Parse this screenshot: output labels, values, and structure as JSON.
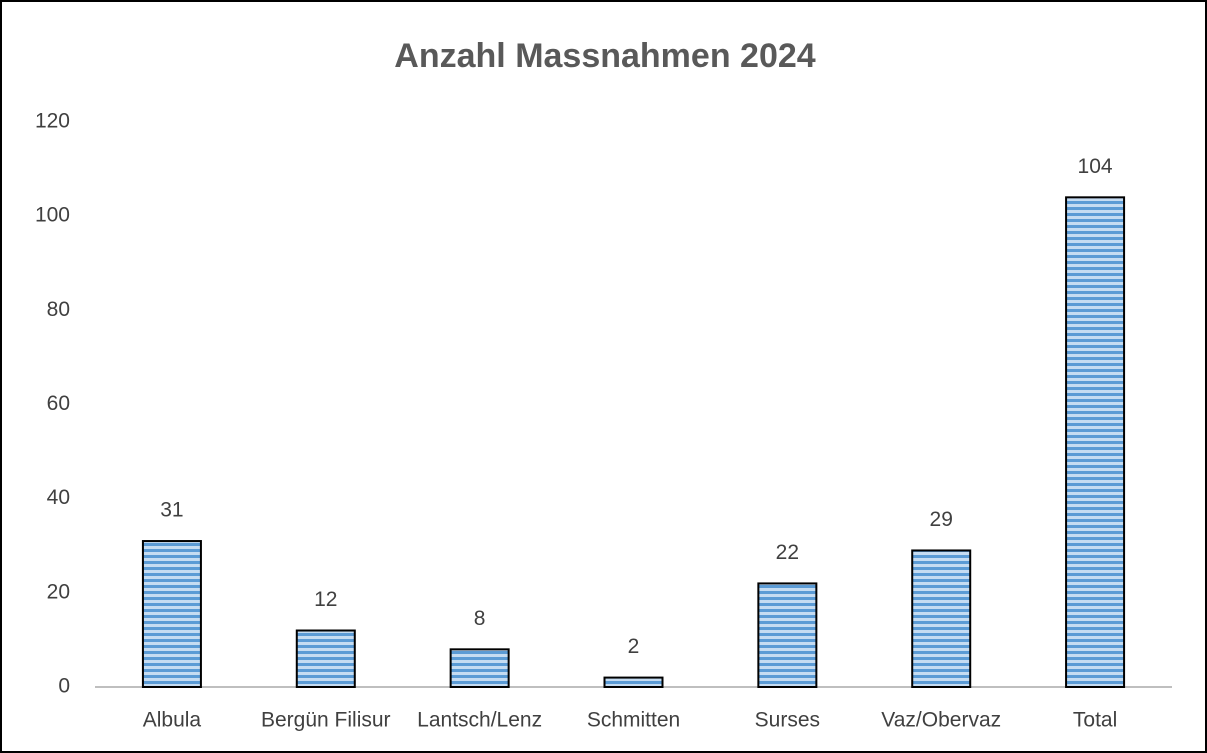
{
  "chart_data": {
    "type": "bar",
    "title": "Anzahl Massnahmen 2024",
    "categories": [
      "Albula",
      "Bergün Filisur",
      "Lantsch/Lenz",
      "Schmitten",
      "Surses",
      "Vaz/Obervaz",
      "Total"
    ],
    "values": [
      31,
      12,
      8,
      2,
      22,
      29,
      104
    ],
    "color": "#8db4e2",
    "ylim": [
      0,
      120
    ],
    "yticks": [
      0,
      20,
      40,
      60,
      80,
      100,
      120
    ],
    "grid": false
  }
}
